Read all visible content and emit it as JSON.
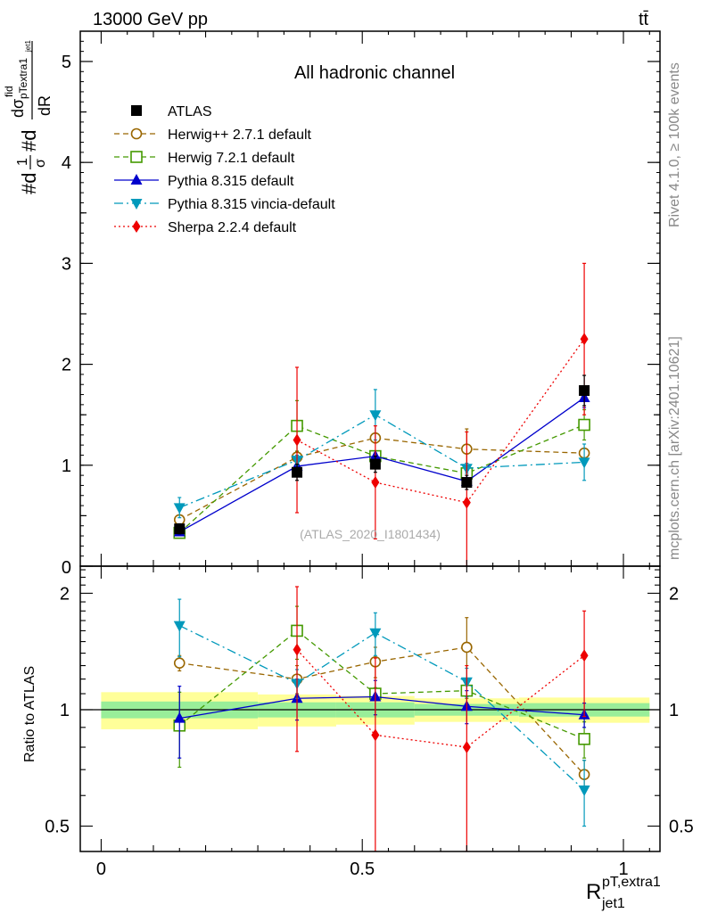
{
  "header": {
    "energy_label": "13000 GeV pp",
    "process_label": "tt̄"
  },
  "side_texts": {
    "rivet": "Rivet 4.1.0, ≥ 100k events",
    "mcplots": "mcplots.cern.ch [arXiv:2401.10621]"
  },
  "chart_data": {
    "type": "line",
    "title": "All hadronic channel",
    "watermark": "(ATLAS_2020_I1801434)",
    "ylabel": "#d₁/σ #d dσ^fid/dR_jet1^pT,extra1",
    "ylabel_parts": {
      "outer": "#d",
      "frac_num": "1",
      "frac_den": "σ",
      "mid": "#d",
      "inner_num": "dσ",
      "inner_num_sup": "fid",
      "inner_num_sub": "pTextra1",
      "inner_num_subsub": "jet1",
      "inner_den": "dR"
    },
    "xlabel_main": "R",
    "xlabel_sup": "pT,extra1",
    "xlabel_sub": "jet1",
    "ratio_ylabel": "Ratio to ATLAS",
    "xlim": [
      -0.04,
      1.07
    ],
    "ylim": [
      0,
      5.3
    ],
    "ratio_ylim": [
      0.43,
      2.35
    ],
    "x_ticks": [
      0,
      0.5,
      1
    ],
    "x_tick_labels": [
      "0",
      "0.5",
      "1"
    ],
    "y_ticks": [
      1,
      2,
      3,
      4,
      5
    ],
    "y_tick_labels": [
      "1",
      "2",
      "3",
      "4",
      "5"
    ],
    "y_zero_label": "0",
    "ratio_ticks": [
      0.5,
      1,
      2
    ],
    "ratio_tick_labels": [
      "0.5",
      "1",
      "2"
    ],
    "bins": [
      [
        0,
        0.3
      ],
      [
        0.3,
        0.45
      ],
      [
        0.45,
        0.6
      ],
      [
        0.6,
        0.8
      ],
      [
        0.8,
        1.05
      ]
    ],
    "x": [
      0.15,
      0.375,
      0.525,
      0.7,
      0.925
    ],
    "data": {
      "name": "ATLAS",
      "color": "#000000",
      "values": [
        0.37,
        0.93,
        1.01,
        0.83,
        1.74
      ],
      "errors": [
        0.05,
        0.08,
        0.08,
        0.07,
        0.15
      ]
    },
    "uncertainty_bands": {
      "stat": [
        0.05,
        0.045,
        0.045,
        0.035,
        0.04
      ],
      "total": [
        0.11,
        0.095,
        0.085,
        0.07,
        0.075
      ],
      "stat_color": "#99ee99",
      "total_color": "#ffff99"
    },
    "series": [
      {
        "name": "Herwig++ 2.7.1 default",
        "color": "#996600",
        "marker": "circle-open",
        "dash": "6,4",
        "values": [
          0.46,
          1.08,
          1.27,
          1.16,
          1.12
        ],
        "errors": [
          0.03,
          0.05,
          0.05,
          0.2,
          0.04
        ],
        "ratio": [
          1.32,
          1.2,
          1.33,
          1.45,
          0.68
        ],
        "ratio_errors": [
          0.06,
          0.1,
          0.12,
          0.28,
          0.06
        ]
      },
      {
        "name": "Herwig 7.2.1 default",
        "color": "#449900",
        "marker": "square-open",
        "dash": "6,4",
        "values": [
          0.33,
          1.39,
          1.09,
          0.92,
          1.4
        ],
        "errors": [
          0.02,
          0.25,
          0.02,
          0.03,
          0.15
        ],
        "ratio": [
          0.91,
          1.6,
          1.1,
          1.12,
          0.84
        ],
        "ratio_errors": [
          0.2,
          0.25,
          0.04,
          0.05,
          0.09
        ]
      },
      {
        "name": "Pythia 8.315 default",
        "color": "#0000cc",
        "marker": "triangle-up",
        "dash": "",
        "values": [
          0.34,
          0.99,
          1.09,
          0.84,
          1.67
        ],
        "errors": [
          0.02,
          0.03,
          0.03,
          0.03,
          0.1
        ],
        "ratio": [
          0.95,
          1.07,
          1.08,
          1.02,
          0.97
        ],
        "ratio_errors": [
          0.2,
          0.13,
          0.11,
          0.1,
          0.07
        ]
      },
      {
        "name": "Pythia 8.315 vincia-default",
        "color": "#0099bb",
        "marker": "triangle-down",
        "dash": "10,4,2,4",
        "values": [
          0.58,
          1.05,
          1.5,
          0.97,
          1.03
        ],
        "errors": [
          0.1,
          0.05,
          0.25,
          0.05,
          0.18
        ],
        "ratio": [
          1.65,
          1.17,
          1.58,
          1.18,
          0.62
        ],
        "ratio_errors": [
          0.28,
          0.1,
          0.2,
          0.1,
          0.12
        ]
      },
      {
        "name": "Sherpa 2.2.4 default",
        "color": "#ee0000",
        "marker": "diamond",
        "dash": "2,3",
        "values": [
          0.0,
          1.25,
          0.83,
          0.63,
          2.25
        ],
        "errors": [
          0.0,
          0.72,
          0.56,
          0.7,
          0.75
        ],
        "ratio": [
          null,
          1.43,
          0.86,
          0.8,
          1.38
        ],
        "ratio_errors": [
          0,
          0.65,
          0.5,
          0.5,
          0.42
        ]
      }
    ]
  }
}
